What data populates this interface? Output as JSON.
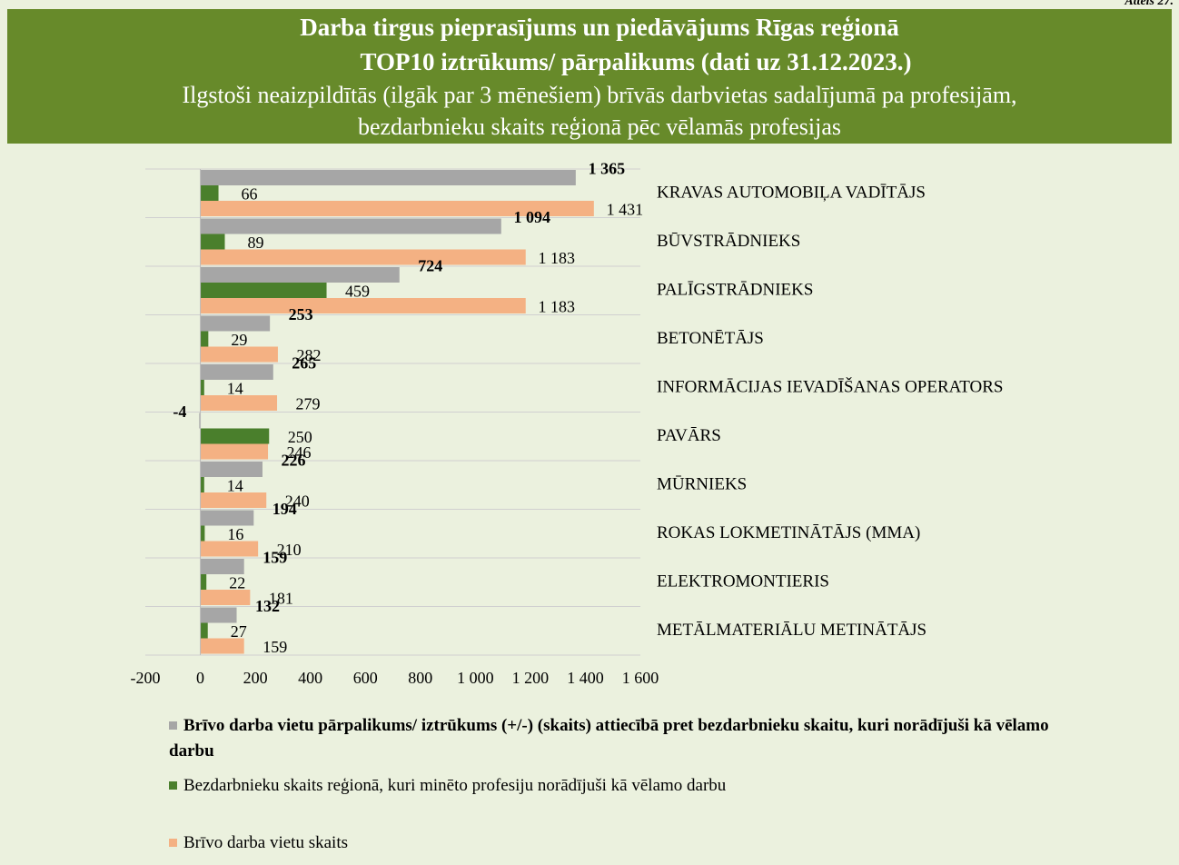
{
  "chart_data": {
    "type": "bar",
    "orientation": "horizontal",
    "title": [
      "Darba tirgus pieprasījums un piedāvājums Rīgas reģionā",
      "TOP10 iztrūkums/ pārpalikums (dati uz 31.12.2023.)"
    ],
    "subtitle": [
      "Ilgstoši neaizpildītās (ilgāk par 3 mēnešiem) brīvās darbvietas sadalījumā pa profesijām,",
      "bezdarbnieku skaits reģionā pēc vēlamās profesijas"
    ],
    "annotation": "Attēls 27.",
    "categories": [
      "KRAVAS AUTOMOBIĻA VADĪTĀJS",
      "BŪVSTRĀDNIEKS",
      "PALĪGSTRĀDNIEKS",
      "BETONĒTĀJS",
      "INFORMĀCIJAS IEVADĪŠANAS OPERATORS",
      "PAVĀRS",
      "MŪRNIEKS",
      "ROKAS LOKMETINĀTĀJS (MMA)",
      "ELEKTROMONTIERIS",
      "METĀLMATERIĀLU METINĀTĀJS"
    ],
    "series": [
      {
        "name": "Brīvo darba vietu pārpalikums/ iztrūkums (+/-) (skaits) attiecībā pret bezdarbnieku skaitu, kuri norādījuši kā vēlamo darbu",
        "color": "#a6a6a6",
        "bold": true,
        "values": [
          1365,
          1094,
          724,
          253,
          265,
          -4,
          226,
          194,
          159,
          132
        ],
        "value_labels": [
          "1 365",
          "1 094",
          "724",
          "253",
          "265",
          "-4",
          "226",
          "194",
          "159",
          "132"
        ]
      },
      {
        "name": "Bezdarbnieku skaits reģionā, kuri minēto profesiju norādījuši kā vēlamo darbu",
        "color": "#4a7f2c",
        "bold": false,
        "values": [
          66,
          89,
          459,
          29,
          14,
          250,
          14,
          16,
          22,
          27
        ],
        "value_labels": [
          "66",
          "89",
          "459",
          "29",
          "14",
          "250",
          "14",
          "16",
          "22",
          "27"
        ]
      },
      {
        "name": "Brīvo darba vietu skaits",
        "color": "#f4b183",
        "bold": false,
        "values": [
          1431,
          1183,
          1183,
          282,
          279,
          246,
          240,
          210,
          181,
          159
        ],
        "value_labels": [
          "1 431",
          "1 183",
          "1 183",
          "282",
          "279",
          "246",
          "240",
          "210",
          "181",
          "159"
        ]
      }
    ],
    "xlim": [
      -200,
      1600
    ],
    "xticks": [
      -200,
      0,
      200,
      400,
      600,
      800,
      {
        "value": 1000,
        "label": "1 000"
      },
      {
        "value": 1200,
        "label": "1 200"
      },
      {
        "value": 1400,
        "label": "1 400"
      },
      {
        "value": 1600,
        "label": "1 600"
      }
    ],
    "grid": true
  }
}
